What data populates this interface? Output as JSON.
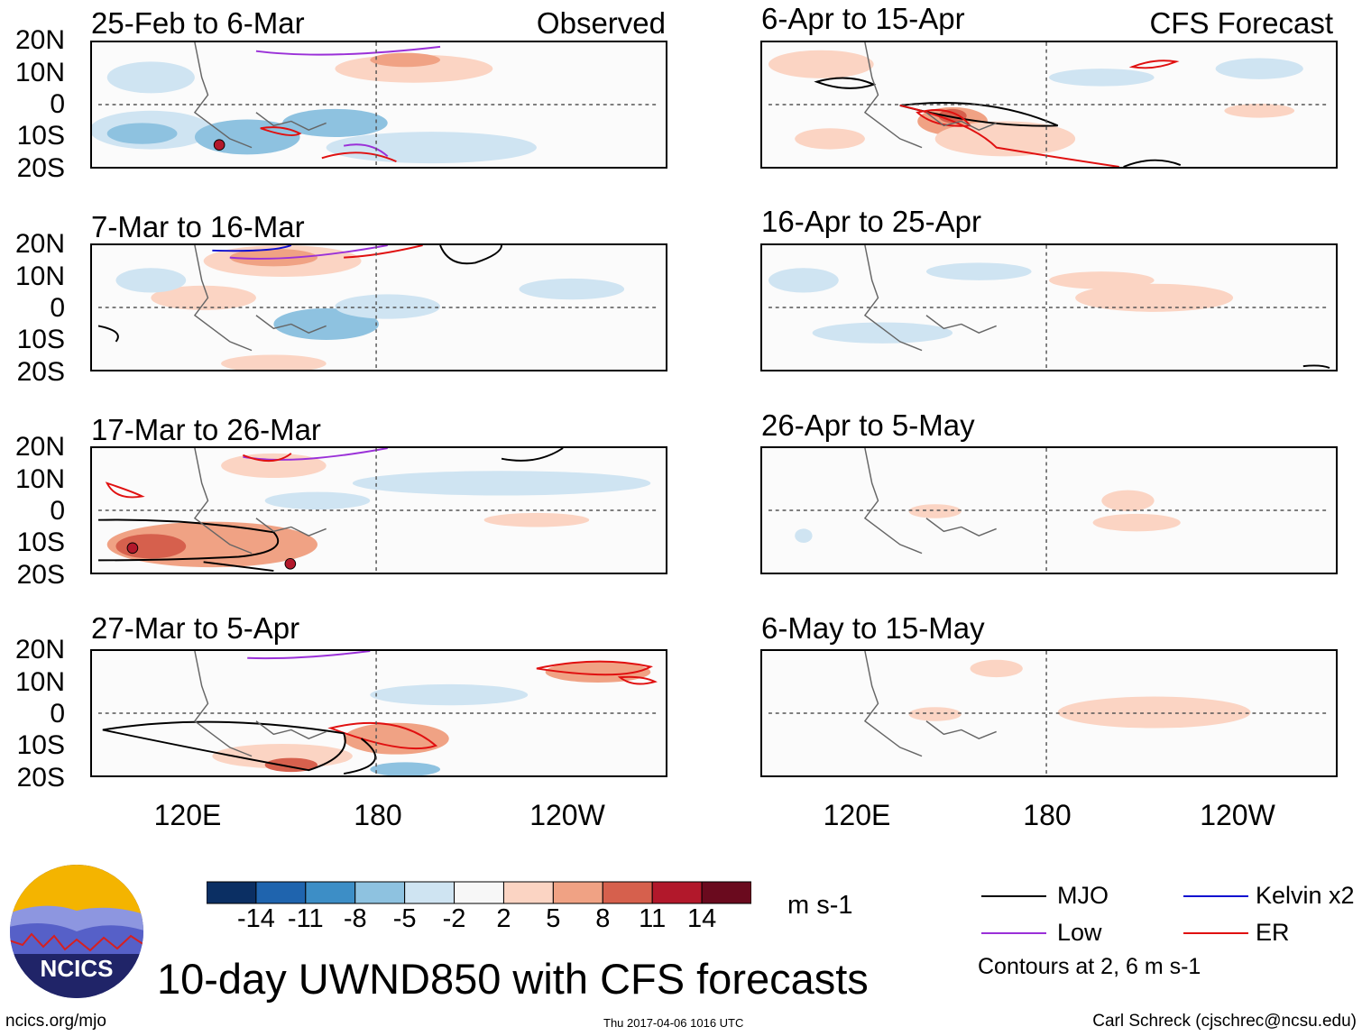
{
  "chart_data": {
    "type": "heatmap",
    "title": "10-day UWND850 with CFS forecasts",
    "variable": "UWND850",
    "units": "m s-1",
    "colorbar": {
      "ticks": [
        "-14",
        "-11",
        "-8",
        "-5",
        "-2",
        "2",
        "5",
        "8",
        "11",
        "14"
      ],
      "colors": [
        "#0b2f63",
        "#1f64ae",
        "#3d8ec6",
        "#8ec2e0",
        "#cfe4f2",
        "#f7f7f7",
        "#fbd4c3",
        "#f0a284",
        "#d6604d",
        "#b2182b",
        "#6a0a1e"
      ]
    },
    "latitude_ticks": [
      "20N",
      "10N",
      "0",
      "10S",
      "20S"
    ],
    "longitude_ticks": [
      "120E",
      "180",
      "120W"
    ],
    "observed_label": "Observed",
    "forecast_label": "CFS Forecast",
    "panels": [
      {
        "period": "25-Feb to 6-Mar",
        "source": "Observed"
      },
      {
        "period": "7-Mar to 16-Mar",
        "source": "Observed"
      },
      {
        "period": "17-Mar to 26-Mar",
        "source": "Observed"
      },
      {
        "period": "27-Mar to 5-Apr",
        "source": "Observed"
      },
      {
        "period": "6-Apr to 15-Apr",
        "source": "CFS Forecast"
      },
      {
        "period": "16-Apr to 25-Apr",
        "source": "CFS Forecast"
      },
      {
        "period": "26-Apr to 5-May",
        "source": "CFS Forecast"
      },
      {
        "period": "6-May to 15-May",
        "source": "CFS Forecast"
      }
    ],
    "legend": [
      {
        "label": "MJO",
        "color": "#000000"
      },
      {
        "label": "Kelvin x2",
        "color": "#1010d0"
      },
      {
        "label": "Low",
        "color": "#9a30d8"
      },
      {
        "label": "ER",
        "color": "#e01010"
      }
    ],
    "contour_note": "Contours at 2, 6 m s-1"
  },
  "footer": {
    "logo_text": "NCICS",
    "url": "ncics.org/mjo",
    "timestamp": "Thu 2017-04-06 1016 UTC",
    "credit": "Carl Schreck (cjschrec@ncsu.edu)"
  }
}
